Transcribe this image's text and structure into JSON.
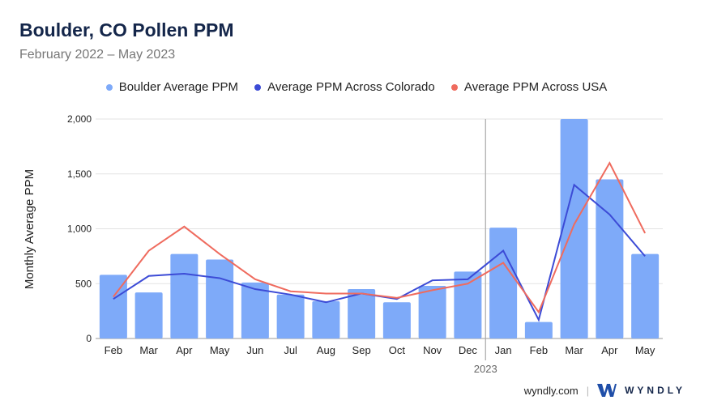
{
  "header": {
    "title": "Boulder, CO Pollen PPM",
    "subtitle": "February 2022 – May 2023"
  },
  "footer": {
    "site": "wyndly.com",
    "brand": "WYNDLY"
  },
  "colors": {
    "bar": "#7eaaf9",
    "colorado": "#3c4bd6",
    "usa": "#ef6b5e"
  },
  "chart_data": {
    "type": "bar",
    "title": "Boulder, CO Pollen PPM",
    "ylabel": "Monthly Average PPM",
    "xlabel": "",
    "ylim": [
      0,
      2000
    ],
    "yticks": [
      0,
      500,
      1000,
      1500,
      2000
    ],
    "ytick_labels": [
      "0",
      "500",
      "1,000",
      "1,500",
      "2,000"
    ],
    "categories": [
      "Feb",
      "Mar",
      "Apr",
      "May",
      "Jun",
      "Jul",
      "Aug",
      "Sep",
      "Oct",
      "Nov",
      "Dec",
      "Jan",
      "Feb",
      "Mar",
      "Apr",
      "May"
    ],
    "year_marker": {
      "label": "2023",
      "before_index": 11
    },
    "legend_position": "top",
    "series": [
      {
        "name": "Boulder Average PPM",
        "type": "bar",
        "values": [
          580,
          420,
          770,
          720,
          510,
          400,
          340,
          450,
          330,
          480,
          610,
          1010,
          150,
          2000,
          1450,
          770
        ]
      },
      {
        "name": "Average PPM Across Colorado",
        "type": "line",
        "values": [
          360,
          570,
          590,
          550,
          450,
          400,
          330,
          410,
          360,
          530,
          540,
          800,
          170,
          1400,
          1130,
          750
        ]
      },
      {
        "name": "Average PPM Across USA",
        "type": "line",
        "values": [
          380,
          800,
          1020,
          770,
          540,
          430,
          410,
          410,
          370,
          440,
          500,
          690,
          240,
          1040,
          1600,
          960
        ]
      }
    ]
  }
}
